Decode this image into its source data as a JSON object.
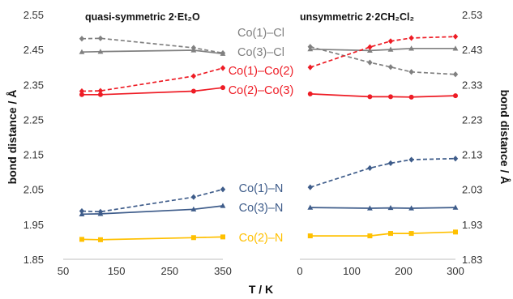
{
  "chart_data": [
    {
      "type": "line",
      "title": "quasi-symmetric 2·Et₂O",
      "ylabel": "bond distance / Å",
      "ylim": [
        1.85,
        2.55
      ],
      "xlim": [
        50,
        350
      ],
      "xticks": [
        "50",
        "150",
        "250",
        "350"
      ],
      "yticks": [
        "1.85",
        "1.95",
        "2.05",
        "2.15",
        "2.25",
        "2.35",
        "2.45",
        "2.55"
      ],
      "series": [
        {
          "name": "Co(1)–Cl",
          "color": "#808080",
          "dashed": true,
          "marker": "diamond",
          "x": [
            85,
            120,
            295,
            350
          ],
          "y": [
            2.481,
            2.482,
            2.455,
            2.44
          ]
        },
        {
          "name": "Co(3)–Cl",
          "color": "#808080",
          "dashed": false,
          "marker": "triangle",
          "x": [
            85,
            120,
            295,
            350
          ],
          "y": [
            2.443,
            2.444,
            2.448,
            2.438
          ]
        },
        {
          "name": "Co(1)–Co(2)",
          "color": "#ee1c25",
          "dashed": true,
          "marker": "diamond",
          "x": [
            85,
            120,
            295,
            350
          ],
          "y": [
            2.331,
            2.332,
            2.374,
            2.397
          ]
        },
        {
          "name": "Co(2)–Co(3)",
          "color": "#ee1c25",
          "dashed": false,
          "marker": "circle",
          "x": [
            85,
            120,
            295,
            350
          ],
          "y": [
            2.321,
            2.321,
            2.331,
            2.341
          ]
        },
        {
          "name": "Co(1)–N",
          "color": "#3e5c8a",
          "dashed": true,
          "marker": "diamond",
          "x": [
            85,
            120,
            295,
            350
          ],
          "y": [
            1.988,
            1.986,
            2.028,
            2.05
          ]
        },
        {
          "name": "Co(3)–N",
          "color": "#3e5c8a",
          "dashed": false,
          "marker": "triangle",
          "x": [
            85,
            120,
            295,
            350
          ],
          "y": [
            1.979,
            1.98,
            1.993,
            2.003
          ]
        },
        {
          "name": "Co(2)–N",
          "color": "#ffc000",
          "dashed": false,
          "marker": "square",
          "x": [
            85,
            120,
            295,
            350
          ],
          "y": [
            1.907,
            1.906,
            1.912,
            1.914
          ]
        }
      ]
    },
    {
      "type": "line",
      "title": "unsymmetric 2·2CH₂Cl₂",
      "xlabel": "T / K",
      "ylabel": "bond distance / Å",
      "ylim": [
        1.83,
        2.53
      ],
      "xlim": [
        0,
        300
      ],
      "xticks": [
        "0",
        "100",
        "200",
        "300"
      ],
      "yticks": [
        "1.83",
        "1.93",
        "2.03",
        "2.13",
        "2.23",
        "2.33",
        "2.43",
        "2.53"
      ],
      "series": [
        {
          "name": "Co(1)–Cl",
          "color": "#808080",
          "dashed": true,
          "marker": "diamond",
          "x": [
            20,
            135,
            175,
            215,
            300
          ],
          "y": [
            2.438,
            2.393,
            2.38,
            2.366,
            2.359
          ]
        },
        {
          "name": "Co(3)–Cl",
          "color": "#808080",
          "dashed": false,
          "marker": "triangle",
          "x": [
            20,
            135,
            175,
            215,
            300
          ],
          "y": [
            2.431,
            2.427,
            2.43,
            2.433,
            2.433
          ]
        },
        {
          "name": "Co(1)–Co(2)",
          "color": "#ee1c25",
          "dashed": true,
          "marker": "diamond",
          "x": [
            20,
            135,
            175,
            215,
            300
          ],
          "y": [
            2.379,
            2.437,
            2.454,
            2.463,
            2.467
          ]
        },
        {
          "name": "Co(2)–Co(3)",
          "color": "#ee1c25",
          "dashed": false,
          "marker": "circle",
          "x": [
            20,
            135,
            175,
            215,
            300
          ],
          "y": [
            2.303,
            2.295,
            2.295,
            2.294,
            2.298
          ]
        },
        {
          "name": "Co(1)–N",
          "color": "#3e5c8a",
          "dashed": true,
          "marker": "diamond",
          "x": [
            20,
            135,
            175,
            215,
            300
          ],
          "y": [
            2.036,
            2.091,
            2.105,
            2.115,
            2.118
          ]
        },
        {
          "name": "Co(3)–N",
          "color": "#3e5c8a",
          "dashed": false,
          "marker": "triangle",
          "x": [
            20,
            135,
            175,
            215,
            300
          ],
          "y": [
            1.978,
            1.976,
            1.977,
            1.976,
            1.978
          ]
        },
        {
          "name": "Co(2)–N",
          "color": "#ffc000",
          "dashed": false,
          "marker": "square",
          "x": [
            20,
            135,
            175,
            215,
            300
          ],
          "y": [
            1.897,
            1.897,
            1.904,
            1.904,
            1.908
          ]
        }
      ]
    }
  ]
}
